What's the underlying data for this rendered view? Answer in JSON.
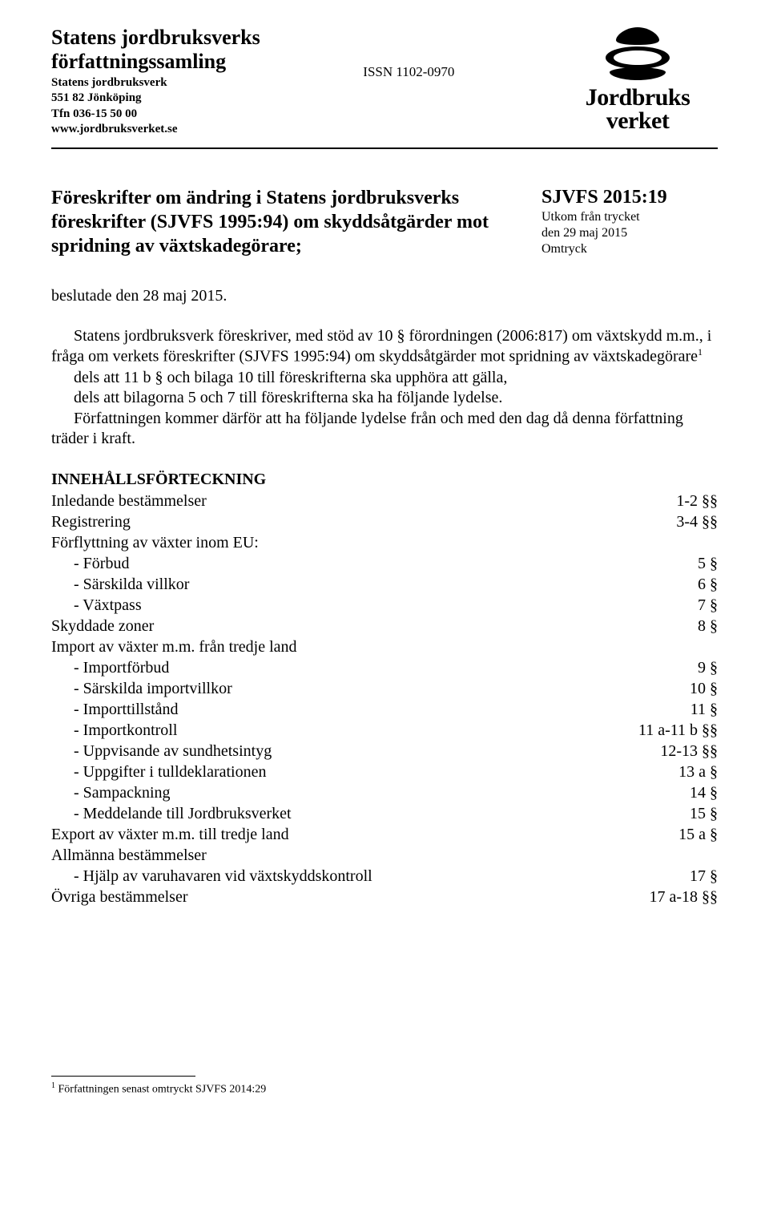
{
  "header": {
    "org_title_line1": "Statens jordbruksverks",
    "org_title_line2": "författningssamling",
    "address": [
      "Statens jordbruksverk",
      "551 82  Jönköping",
      "Tfn 036-15 50 00",
      "www.jordbruksverket.se"
    ],
    "issn": "ISSN 1102-0970",
    "logo_line1": "Jordbruks",
    "logo_line2": "verket"
  },
  "title": "Föreskrifter om ändring i Statens jordbruksverks föreskrifter (SJVFS 1995:94) om skyddsåtgärder mot spridning av växtskadegörare;",
  "meta": {
    "id": "SJVFS 2015:19",
    "issued_line1": "Utkom  från  trycket",
    "issued_line2": "den 29 maj 2015",
    "reprint": "Omtryck"
  },
  "decided": "beslutade den 28 maj 2015.",
  "body": {
    "p1": "Statens jordbruksverk föreskriver, med stöd av 10 § förordningen (2006:817) om växtskydd m.m., i fråga om verkets föreskrifter (SJVFS 1995:94) om skyddsåtgärder mot spridning av växtskadegörare",
    "p1_sup": "1",
    "p2": "dels att 11 b § och bilaga 10 till föreskrifterna ska upphöra att gälla,",
    "p3": "dels att bilagorna 5 och 7 till föreskrifterna ska ha följande lydelse.",
    "p4": "Författningen kommer därför att ha följande lydelse från och med den dag då denna författning träder i kraft."
  },
  "toc_title": "INNEHÅLLSFÖRTECKNING",
  "toc": [
    {
      "label": "Inledande bestämmelser",
      "ref": "1-2 §§",
      "sub": false
    },
    {
      "label": "Registrering",
      "ref": "3-4 §§",
      "sub": false
    },
    {
      "label": "Förflyttning av växter inom EU:",
      "ref": "",
      "sub": false
    },
    {
      "label": "- Förbud",
      "ref": "5 §",
      "sub": true
    },
    {
      "label": "- Särskilda villkor",
      "ref": "6 §",
      "sub": true
    },
    {
      "label": "- Växtpass",
      "ref": "7 §",
      "sub": true
    },
    {
      "label": "Skyddade zoner",
      "ref": "8 §",
      "sub": false
    },
    {
      "label": "Import av växter m.m. från tredje land",
      "ref": "",
      "sub": false
    },
    {
      "label": "- Importförbud",
      "ref": "9 §",
      "sub": true
    },
    {
      "label": "- Särskilda importvillkor",
      "ref": "10 §",
      "sub": true
    },
    {
      "label": "- Importtillstånd",
      "ref": "11 §",
      "sub": true
    },
    {
      "label": "- Importkontroll",
      "ref": "11 a-11 b §§",
      "sub": true
    },
    {
      "label": "- Uppvisande av sundhetsintyg",
      "ref": "12-13 §§",
      "sub": true
    },
    {
      "label": "- Uppgifter i tulldeklarationen",
      "ref": "13 a §",
      "sub": true
    },
    {
      "label": "- Sampackning",
      "ref": "14 §",
      "sub": true
    },
    {
      "label": "- Meddelande till Jordbruksverket",
      "ref": "15 §",
      "sub": true
    },
    {
      "label": "Export av växter m.m. till tredje land",
      "ref": "15 a §",
      "sub": false
    },
    {
      "label": "Allmänna bestämmelser",
      "ref": "",
      "sub": false
    },
    {
      "label": "- Hjälp av varuhavaren vid växtskyddskontroll",
      "ref": "17 §",
      "sub": true
    },
    {
      "label": "Övriga bestämmelser",
      "ref": "17 a-18 §§",
      "sub": false
    }
  ],
  "footnote": {
    "marker": "1",
    "text": " Författningen senast omtryckt SJVFS 2014:29"
  }
}
